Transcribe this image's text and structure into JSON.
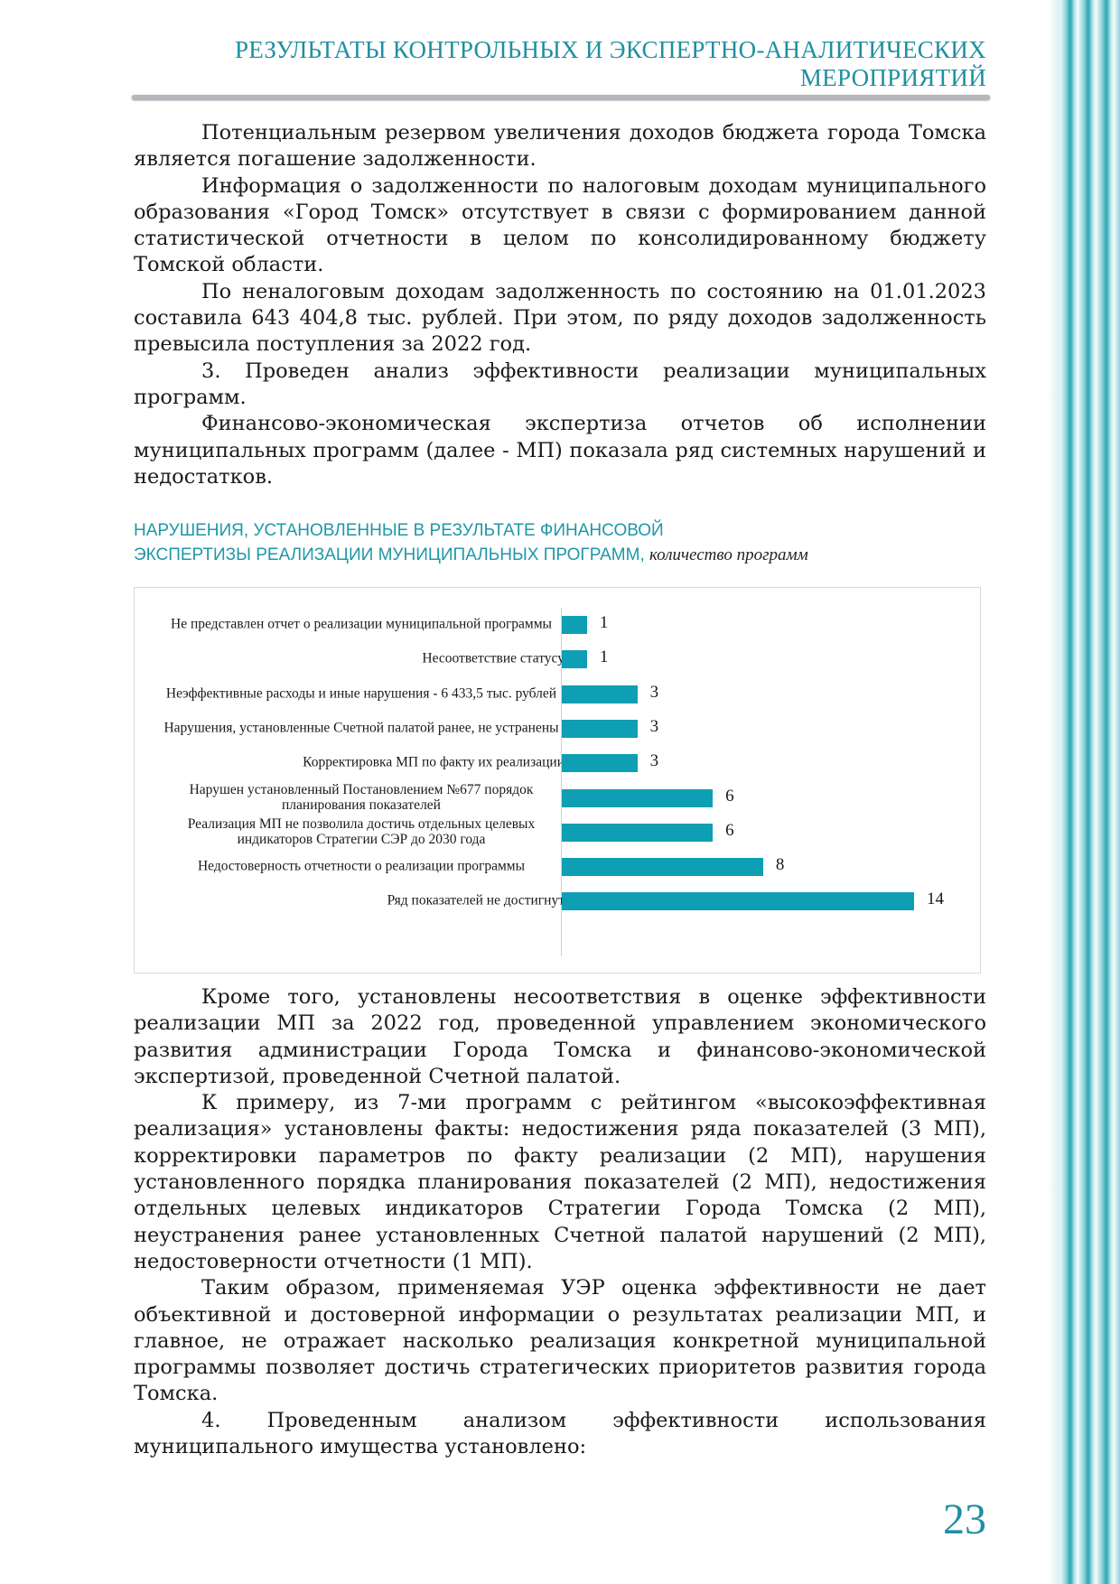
{
  "header": {
    "title": [
      "РЕЗУЛЬТАТЫ КОНТРОЛЬНЫХ И ЭКСПЕРТНО-АНАЛИТИЧЕСКИХ",
      "МЕРОПРИЯТИЙ"
    ]
  },
  "paragraphs_before": [
    "Потенциальным резервом увеличения доходов бюджета города Томска является погашение задолженности.",
    "Информация о задолженности по налоговым доходам муниципального образования «Город Томск» отсутствует в связи с формированием данной статистической отчетности в целом по консолидированному бюджету Томской области.",
    "По неналоговым доходам задолженность по состоянию на 01.01.2023 составила 643 404,8 тыс. рублей. При этом, по ряду доходов задолженность превысила поступления за 2022 год.",
    "3. Проведен анализ эффективности реализации муниципальных программ.",
    "Финансово-экономическая экспертиза отчетов об исполнении муниципальных программ (далее - МП) показала ряд системных нарушений и недостатков."
  ],
  "chart_data": {
    "type": "bar",
    "orientation": "horizontal",
    "title": [
      "НАРУШЕНИЯ, УСТАНОВЛЕННЫЕ В РЕЗУЛЬТАТЕ ФИНАНСОВОЙ",
      "ЭКСПЕРТИЗЫ РЕАЛИЗАЦИИ МУНИЦИПАЛЬНЫХ ПРОГРАММ,"
    ],
    "subtitle": "количество программ",
    "categories": [
      "Не представлен отчет о реализации муниципальной программы",
      "Несоответствие статусу",
      "Неэффективные расходы и иные нарушения - 6 433,5 тыс. рублей",
      "Нарушения, установленные Счетной палатой ранее, не устранены",
      "Корректировка МП по факту их реализации",
      "Нарушен установленный Постановлением №677 порядок планирования показателей",
      "Реализация МП не позволила достичь отдельных целевых индикаторов Стратегии СЭР до 2030 года",
      "Недостоверность отчетности о реализации программы",
      "Ряд показателей не достигнут"
    ],
    "values": [
      1,
      1,
      3,
      3,
      3,
      6,
      6,
      8,
      14
    ],
    "color": "#0e9fb5"
  },
  "paragraphs_after": [
    "Кроме того, установлены несоответствия в оценке эффективности реализации МП за 2022 год, проведенной управлением экономического развития администрации Города Томска и финансово-экономической экспертизой, проведенной Счетной палатой.",
    "К примеру, из 7-ми программ с рейтингом «высокоэффективная реализация» установлены факты: недостижения ряда показателей (3 МП), корректировки параметров по факту реализации (2 МП), нарушения установленного порядка планирования показателей (2 МП), недостижения отдельных целевых индикаторов Стратегии Города Томска (2 МП), неустранения ранее установленных Счетной палатой нарушений (2 МП), недостоверности отчетности (1 МП).",
    "Таким образом, применяемая УЭР оценка эффективности не дает объективной и достоверной информации о результатах реализации МП, и главное, не отражает насколько реализация конкретной муниципальной программы позволяет достичь стратегических приоритетов развития города Томска.",
    "4. Проведенным анализом эффективности использования муниципального имущества установлено:"
  ],
  "page_number": "23"
}
